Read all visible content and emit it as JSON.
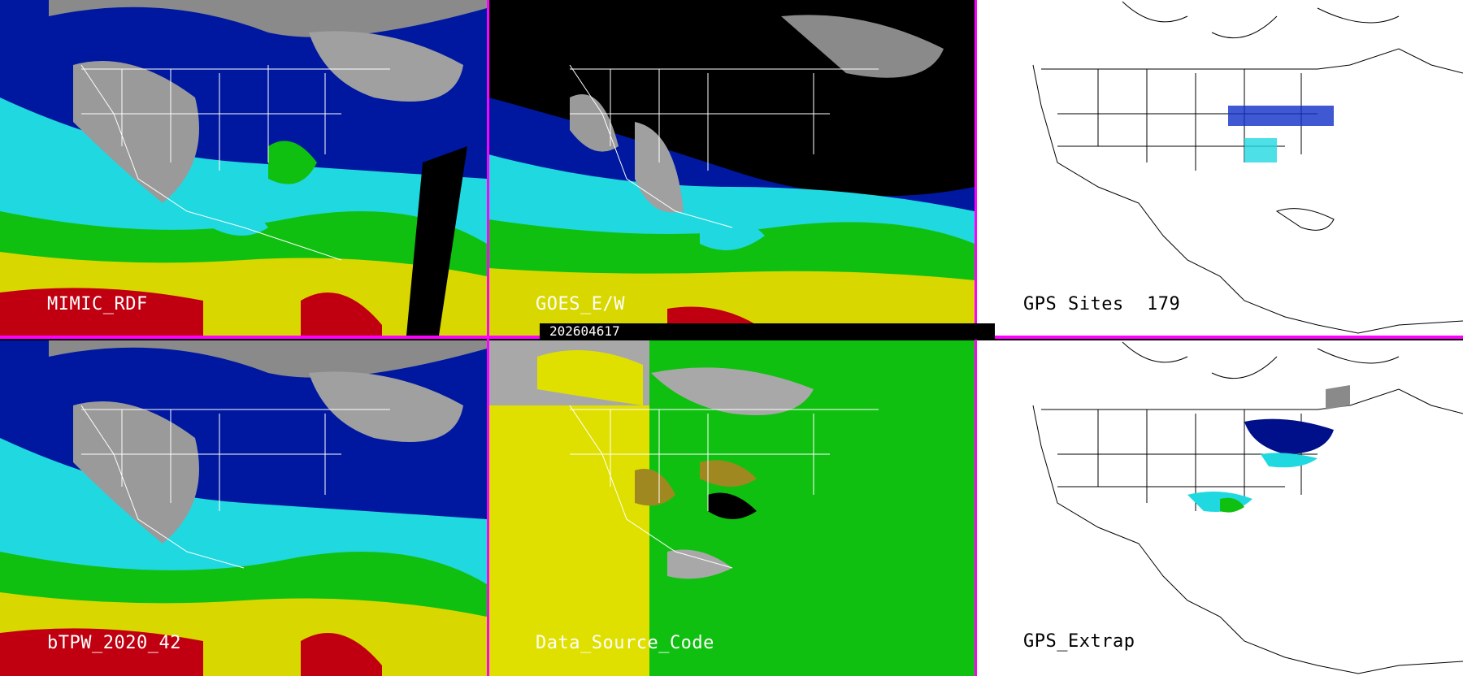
{
  "panels": {
    "p1": {
      "label": "MIMIC_RDF"
    },
    "p2": {
      "label": "GOES_E/W"
    },
    "p3": {
      "label": "GPS Sites",
      "count": "179"
    },
    "p4": {
      "label": "bTPW_2020_42"
    },
    "p5": {
      "label": "Data_Source_Code"
    },
    "p6": {
      "label": "GPS_Extrap"
    }
  },
  "timestamp": "202604617",
  "colors": {
    "divider": "#ff00ff",
    "dry_gray": "#9a9a9a",
    "navy": "#00108a",
    "blue": "#1030c8",
    "cyan": "#20e0e8",
    "green": "#10c010",
    "yellow": "#e0e000",
    "red": "#c00010"
  }
}
